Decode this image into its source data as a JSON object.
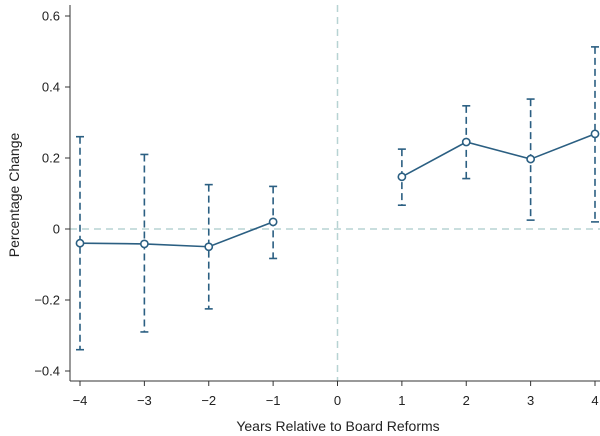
{
  "chart_data": {
    "type": "line",
    "title": "",
    "xlabel": "Years Relative to Board Reforms",
    "ylabel": "Percentage Change",
    "xlim": [
      -4,
      4
    ],
    "ylim": [
      -0.4,
      0.6
    ],
    "x_ticks": [
      -4,
      -3,
      -2,
      -1,
      0,
      1,
      2,
      3,
      4
    ],
    "x_tick_labels": [
      "−4",
      "−3",
      "−2",
      "−1",
      "0",
      "1",
      "2",
      "3",
      "4"
    ],
    "y_ticks": [
      -0.4,
      -0.2,
      0,
      0.2,
      0.4,
      0.6
    ],
    "y_tick_labels": [
      "−0.4",
      "−0.2",
      "0",
      "0.2",
      "0.4",
      "0.6"
    ],
    "reference_lines": {
      "x": 0,
      "y": 0,
      "style": "dashed",
      "color": "#b7d3d3"
    },
    "grid": false,
    "series_color": "#2b5f82",
    "series": [
      {
        "name": "",
        "segments": [
          {
            "x": [
              -4,
              -3,
              -2,
              -1
            ],
            "y": [
              -0.04,
              -0.042,
              -0.05,
              0.02
            ],
            "ci_low": [
              -0.34,
              -0.29,
              -0.225,
              -0.083
            ],
            "ci_high": [
              0.26,
              0.21,
              0.125,
              0.12
            ]
          },
          {
            "x": [
              1,
              2,
              3,
              4
            ],
            "y": [
              0.147,
              0.245,
              0.197,
              0.268
            ],
            "ci_low": [
              0.067,
              0.142,
              0.025,
              0.02
            ],
            "ci_high": [
              0.225,
              0.347,
              0.366,
              0.513
            ]
          }
        ]
      }
    ]
  }
}
